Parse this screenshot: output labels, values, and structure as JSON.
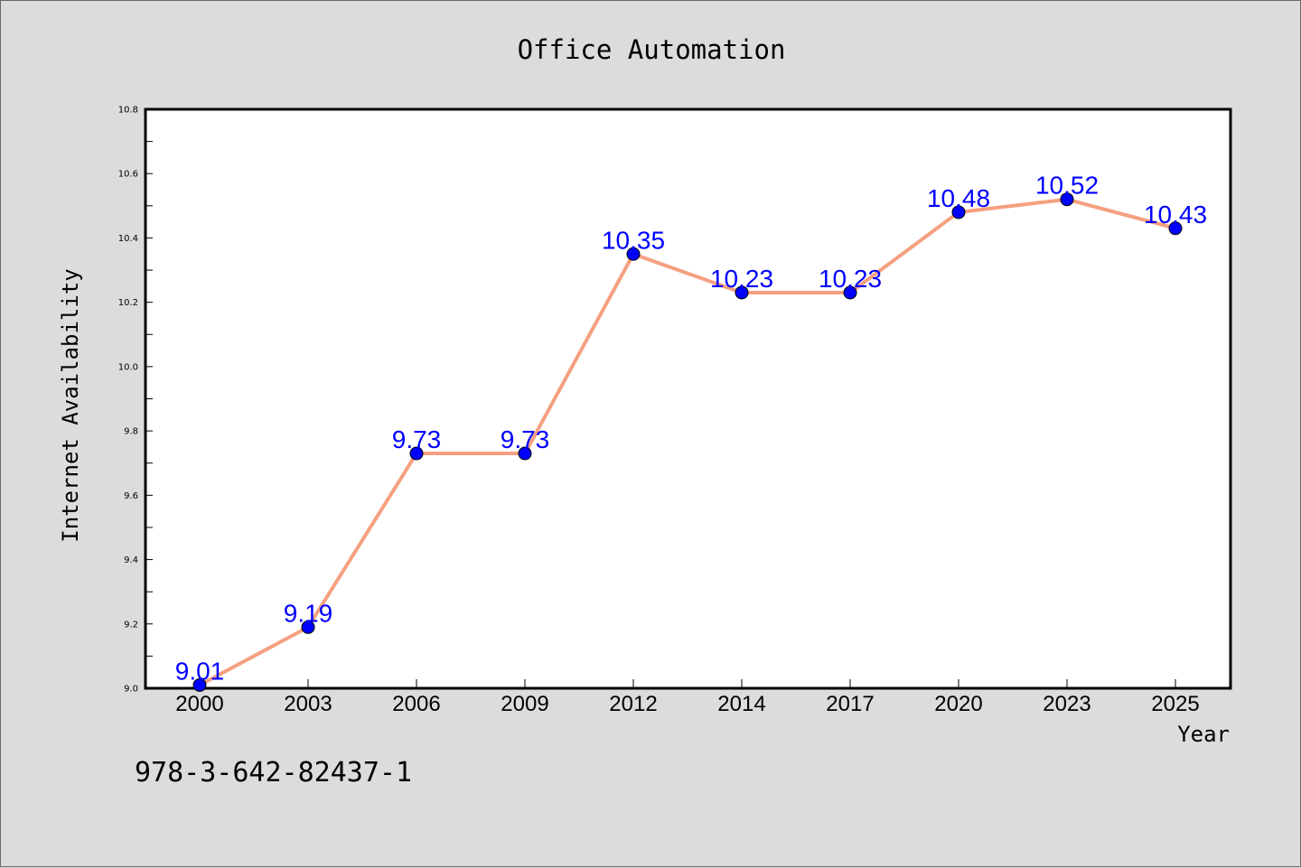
{
  "chart_data": {
    "type": "line",
    "title": "Office Automation",
    "xlabel": "Year",
    "ylabel": "Internet Availability",
    "categories": [
      "2000",
      "2003",
      "2006",
      "2009",
      "2012",
      "2014",
      "2017",
      "2020",
      "2023",
      "2025"
    ],
    "series": [
      {
        "values": [
          9.01,
          9.19,
          9.73,
          9.73,
          10.35,
          10.23,
          10.23,
          10.48,
          10.52,
          10.43
        ],
        "labels": [
          "9.01",
          "9.19",
          "9.73",
          "9.73",
          "10.35",
          "10.23",
          "10.23",
          "10.48",
          "10.52",
          "10.43"
        ],
        "line_color": "#f4a080",
        "marker_color": "#0000ff"
      }
    ],
    "ylim": [
      9.0,
      10.8
    ],
    "yticks": [
      "9.0",
      "9.2",
      "9.4",
      "9.6",
      "9.8",
      "10.0",
      "10.2",
      "10.4",
      "10.6",
      "10.8"
    ],
    "grid": false,
    "legend": "none"
  },
  "footnote": "978-3-642-82437-1",
  "colors": {
    "background": "#dcdcdc",
    "plot_background": "#ffffff",
    "data_label": "#0000ff"
  }
}
